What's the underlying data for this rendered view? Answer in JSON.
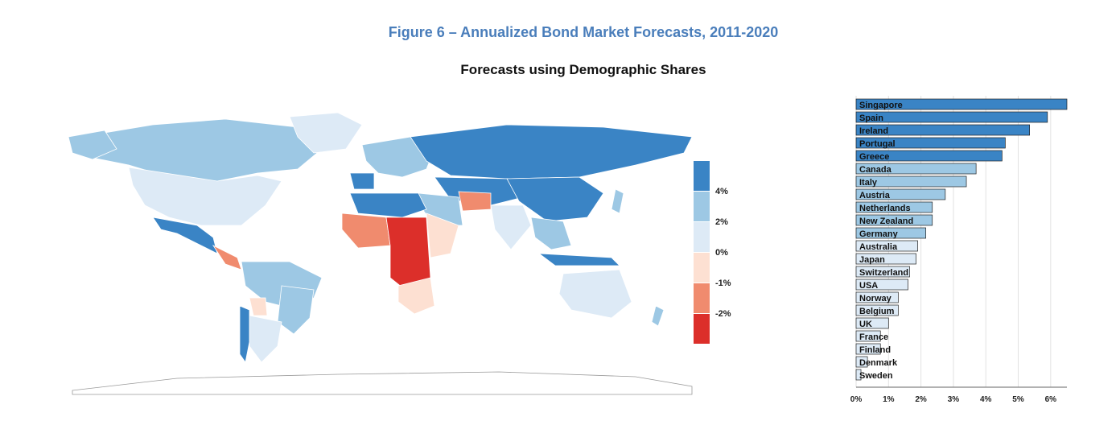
{
  "figure": {
    "title": "Figure 6 – Annualized Bond Market Forecasts, 2011-2020",
    "subtitle": "Forecasts using Demographic Shares"
  },
  "legend": {
    "colors": [
      "#3a84c5",
      "#9dc8e4",
      "#ddeaf6",
      "#fde0d2",
      "#f08b6e",
      "#dc2f2a"
    ],
    "labels": [
      "4%",
      "2%",
      "0%",
      "-1%",
      "-2%"
    ]
  },
  "colors": {
    "strong_blue": "#3a84c5",
    "light_blue": "#9dc8e4",
    "pale_blue": "#ddeaf6",
    "pale_red": "#fde0d2",
    "mid_red": "#f08b6e",
    "strong_red": "#dc2f2a"
  },
  "chart_data": [
    {
      "type": "map",
      "title": "Forecasts using Demographic Shares",
      "legend_breaks": [
        "4%",
        "2%",
        "0%",
        "-1%",
        "-2%"
      ],
      "legend_placement": "right"
    },
    {
      "type": "bar",
      "orientation": "horizontal",
      "categories": [
        "Singapore",
        "Spain",
        "Ireland",
        "Portugal",
        "Greece",
        "Canada",
        "Italy",
        "Austria",
        "Netherlands",
        "New Zealand",
        "Germany",
        "Australia",
        "Japan",
        "Switzerland",
        "USA",
        "Norway",
        "Belgium",
        "UK",
        "France",
        "Finland",
        "Denmark",
        "Sweden"
      ],
      "values": [
        6.5,
        5.9,
        5.35,
        4.6,
        4.5,
        3.7,
        3.4,
        2.75,
        2.35,
        2.35,
        2.15,
        1.9,
        1.85,
        1.65,
        1.6,
        1.3,
        1.3,
        1.0,
        0.75,
        0.75,
        0.35,
        0.15
      ],
      "tier": [
        0,
        0,
        0,
        0,
        0,
        1,
        1,
        1,
        1,
        1,
        1,
        2,
        2,
        2,
        2,
        2,
        2,
        2,
        2,
        2,
        2,
        2
      ],
      "xticks": [
        "0%",
        "1%",
        "2%",
        "3%",
        "4%",
        "5%",
        "6%"
      ],
      "xlim": [
        0,
        6.5
      ],
      "grid": true
    }
  ]
}
